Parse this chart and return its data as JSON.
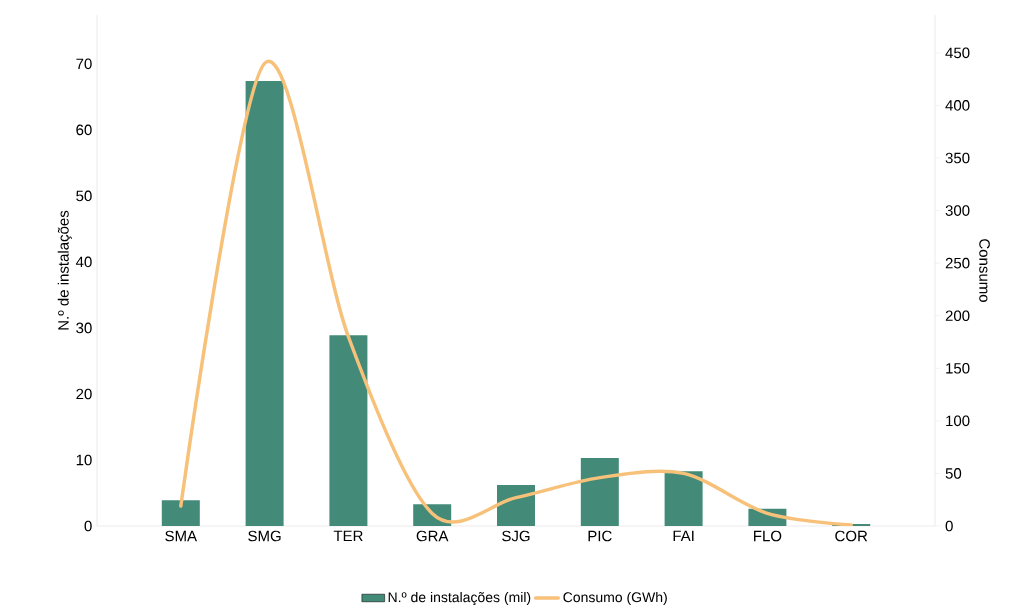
{
  "chart_data": {
    "type": "bar",
    "categories": [
      "SMA",
      "SMG",
      "TER",
      "GRA",
      "SJG",
      "PIC",
      "FAI",
      "FLO",
      "COR"
    ],
    "ylabel": "N.º de instalações",
    "y2label": "Consumo",
    "ylim": [
      0,
      77.4
    ],
    "yticks": [
      0,
      10,
      20,
      30,
      40,
      50,
      60,
      70
    ],
    "y2lim": [
      0,
      486
    ],
    "y2ticks": [
      0,
      50,
      100,
      150,
      200,
      250,
      300,
      350,
      400,
      450
    ],
    "legend": "bottom",
    "series": [
      {
        "name": "N.º de instalações (mil)",
        "color": "#438b78",
        "values": [
          3.9,
          67.4,
          28.9,
          3.3,
          6.2,
          10.3,
          8.3,
          2.6,
          0.3
        ]
      },
      {
        "name": "Consumo (GWh)",
        "type": "line",
        "axis": "y2",
        "color": "#f7c17a",
        "values": [
          19,
          440,
          180,
          12,
          27,
          46,
          50,
          12,
          1
        ]
      }
    ]
  }
}
